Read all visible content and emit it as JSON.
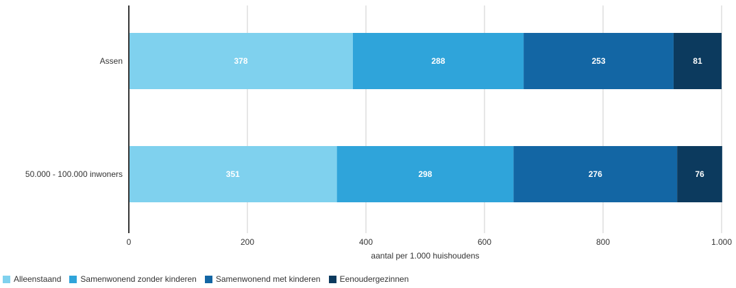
{
  "chart_data": {
    "type": "bar",
    "orientation": "horizontal",
    "stacked": true,
    "categories": [
      "Assen",
      "50.000 - 100.000 inwoners"
    ],
    "series": [
      {
        "name": "Alleenstaand",
        "values": [
          378,
          351
        ],
        "color": "#7fd1ee"
      },
      {
        "name": "Samenwonend zonder kinderen",
        "values": [
          288,
          298
        ],
        "color": "#2fa4da"
      },
      {
        "name": "Samenwonend met kinderen",
        "values": [
          253,
          276
        ],
        "color": "#1366a4"
      },
      {
        "name": "Eenoudergezinnen",
        "values": [
          81,
          76
        ],
        "color": "#0c3a5e"
      }
    ],
    "xlabel": "aantal per 1.000 huishoudens",
    "ylabel": "",
    "xlim": [
      0,
      1000
    ],
    "xticks": [
      0,
      200,
      400,
      600,
      800,
      1000
    ],
    "xtick_labels": [
      "0",
      "200",
      "400",
      "600",
      "800",
      "1.000"
    ],
    "grid": true,
    "legend_position": "bottom-left",
    "data_labels": true
  }
}
